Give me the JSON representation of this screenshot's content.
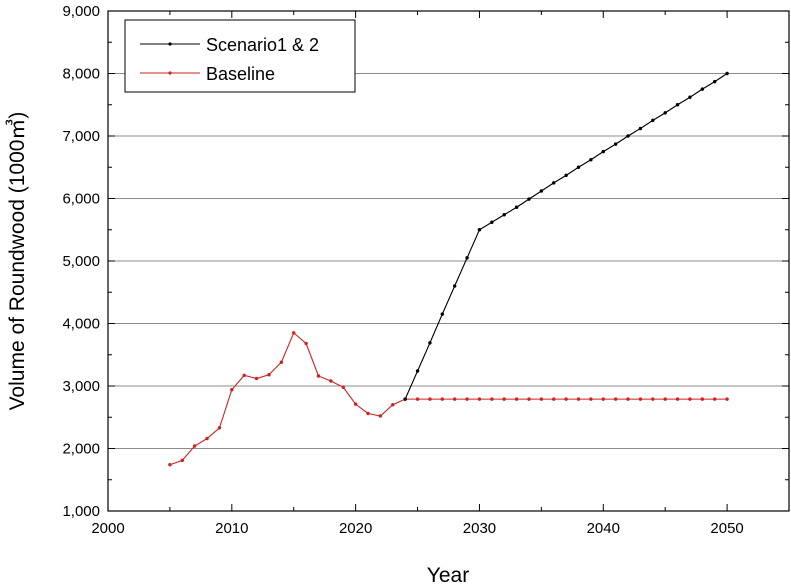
{
  "chart_data": {
    "type": "line",
    "title": "",
    "xlabel": "Year",
    "ylabel": "Volume of Roundwood (1000㎥)",
    "xlim": [
      2000,
      2055
    ],
    "ylim": [
      1000,
      9000
    ],
    "x_ticks": [
      2000,
      2010,
      2020,
      2030,
      2040,
      2050
    ],
    "x_tick_labels": [
      "2000",
      "2010",
      "2020",
      "2030",
      "2040",
      "2050"
    ],
    "y_ticks": [
      1000,
      2000,
      3000,
      4000,
      5000,
      6000,
      7000,
      8000,
      9000
    ],
    "y_tick_labels": [
      "1,000",
      "2,000",
      "3,000",
      "4,000",
      "5,000",
      "6,000",
      "7,000",
      "8,000",
      "9,000"
    ],
    "grid": "horizontal",
    "legend_position": "top-left",
    "series": [
      {
        "name": "Scenario1 & 2",
        "color": "#000000",
        "x": [
          2024,
          2025,
          2026,
          2027,
          2028,
          2029,
          2030,
          2031,
          2032,
          2033,
          2034,
          2035,
          2036,
          2037,
          2038,
          2039,
          2040,
          2041,
          2042,
          2043,
          2044,
          2045,
          2046,
          2047,
          2048,
          2049,
          2050
        ],
        "values": [
          2790,
          3240,
          3690,
          4150,
          4600,
          5050,
          5500,
          5620,
          5740,
          5860,
          5990,
          6120,
          6250,
          6370,
          6500,
          6620,
          6750,
          6870,
          7000,
          7120,
          7250,
          7370,
          7500,
          7620,
          7750,
          7870,
          8000
        ]
      },
      {
        "name": "Baseline",
        "color": "#cc2222",
        "x": [
          2005,
          2006,
          2007,
          2008,
          2009,
          2010,
          2011,
          2012,
          2013,
          2014,
          2015,
          2016,
          2017,
          2018,
          2019,
          2020,
          2021,
          2022,
          2023,
          2024,
          2025,
          2026,
          2027,
          2028,
          2029,
          2030,
          2031,
          2032,
          2033,
          2034,
          2035,
          2036,
          2037,
          2038,
          2039,
          2040,
          2041,
          2042,
          2043,
          2044,
          2045,
          2046,
          2047,
          2048,
          2049,
          2050
        ],
        "values": [
          1740,
          1810,
          2040,
          2160,
          2330,
          2940,
          3170,
          3120,
          3180,
          3380,
          3850,
          3680,
          3160,
          3080,
          2980,
          2710,
          2560,
          2520,
          2700,
          2790,
          2790,
          2790,
          2790,
          2790,
          2790,
          2790,
          2790,
          2790,
          2790,
          2790,
          2790,
          2790,
          2790,
          2790,
          2790,
          2790,
          2790,
          2790,
          2790,
          2790,
          2790,
          2790,
          2790,
          2790,
          2790,
          2790
        ]
      }
    ]
  }
}
